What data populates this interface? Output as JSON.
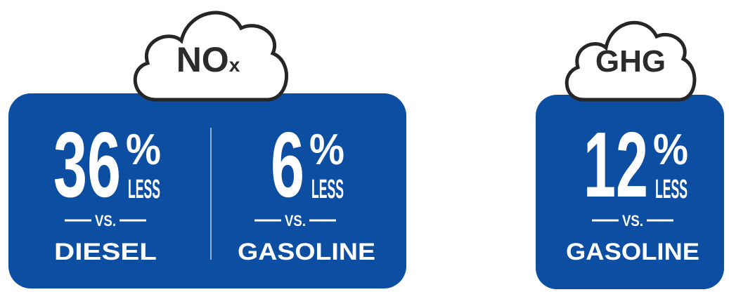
{
  "panels": [
    {
      "label": "NO",
      "label_sub": "x",
      "stats": [
        {
          "number": "36",
          "unit": "%",
          "qualifier": "LESS",
          "vs": "VS.",
          "comparison": "DIESEL"
        },
        {
          "number": "6",
          "unit": "%",
          "qualifier": "LESS",
          "vs": "VS.",
          "comparison": "GASOLINE"
        }
      ]
    },
    {
      "label": "GHG",
      "stats": [
        {
          "number": "12",
          "unit": "%",
          "qualifier": "LESS",
          "vs": "VS.",
          "comparison": "GASOLINE"
        }
      ]
    }
  ]
}
